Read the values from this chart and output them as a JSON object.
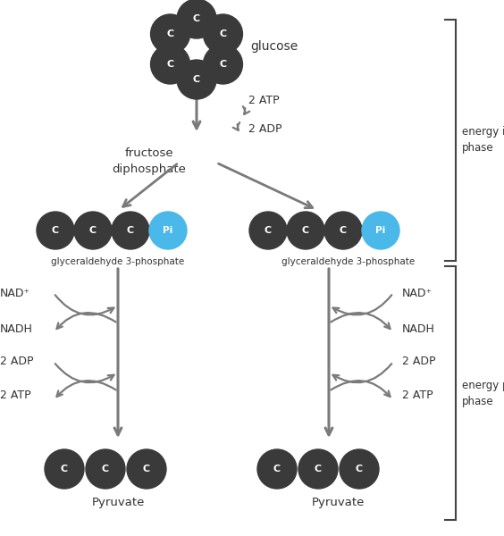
{
  "bg_color": "#ffffff",
  "dark_color": "#3a3a3a",
  "blue_color": "#4ab8e8",
  "arrow_color": "#7a7a7a",
  "text_color": "#333333",
  "bracket_color": "#444444",
  "glucose_label": "glucose",
  "fructose_label": "fructose\ndiphosphate",
  "g3p_label": "glyceraldehyde 3-phosphate",
  "pyruvate_label": "Pyruvate",
  "energy_investment_label": "energy investment\nphase",
  "energy_payoff_label": "energy payoff\nphase"
}
